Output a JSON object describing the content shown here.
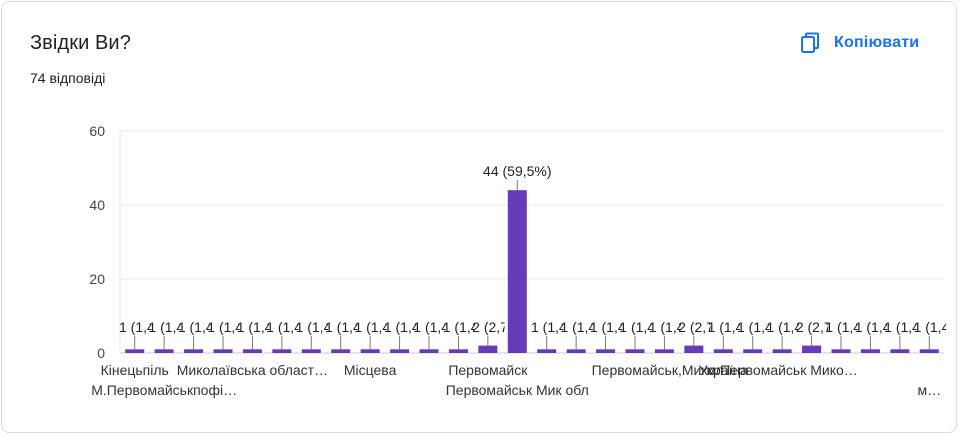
{
  "header": {
    "title": "Звідки Ви?",
    "response_count": "74 відповіді",
    "copy_label": "Копіювати",
    "copy_icon": "copy-icon"
  },
  "colors": {
    "bar": "#673ab7",
    "accent": "#1a73e8",
    "grid": "#e8e8e8",
    "axis_text": "#444444"
  },
  "chart_data": {
    "type": "bar",
    "title": "Звідки Ви?",
    "xlabel": "",
    "ylabel": "",
    "ylim": [
      0,
      60
    ],
    "yticks": [
      0,
      20,
      40,
      60
    ],
    "grid": true,
    "legend": "none",
    "categories": [
      "Кінецьпіль",
      "М.Первомайськпофі…",
      "",
      "",
      "Миколаївська област…",
      "",
      "",
      "",
      "Місцева",
      "",
      "",
      "",
      "Первомайск",
      "Первомайськ Мик обл",
      "",
      "",
      "",
      "",
      "Первомайськ,Микол…",
      "",
      "Україна",
      "",
      "м.Первомайськ Мико…",
      "",
      "",
      "",
      "",
      "м…"
    ],
    "values": [
      1,
      1,
      1,
      1,
      1,
      1,
      1,
      1,
      1,
      1,
      1,
      1,
      2,
      44,
      1,
      1,
      1,
      1,
      1,
      2,
      1,
      1,
      1,
      2,
      1,
      1,
      1,
      1
    ],
    "data_labels": [
      "1 (1,4%)",
      "1 (1,4%)",
      "1 (1,4%)",
      "1 (1,4%)",
      "1 (1,4%)",
      "1 (1,4%)",
      "1 (1,4%)",
      "1 (1,4%)",
      "1 (1,4%)",
      "1 (1,4%)",
      "1 (1,4%)",
      "1 (1,4%)",
      "2 (2,7%)",
      "44 (59,5%)",
      "1 (1,4%)",
      "1 (1,4%)",
      "1 (1,4%)",
      "1 (1,4%)",
      "1 (1,4%)",
      "2 (2,7%)",
      "1 (1,4%)",
      "1 (1,4%)",
      "1 (1,4%)",
      "2 (2,7%)",
      "1 (1,4%)",
      "1 (1,4%)",
      "1 (1,4%)",
      "1 (1,4%)"
    ]
  }
}
